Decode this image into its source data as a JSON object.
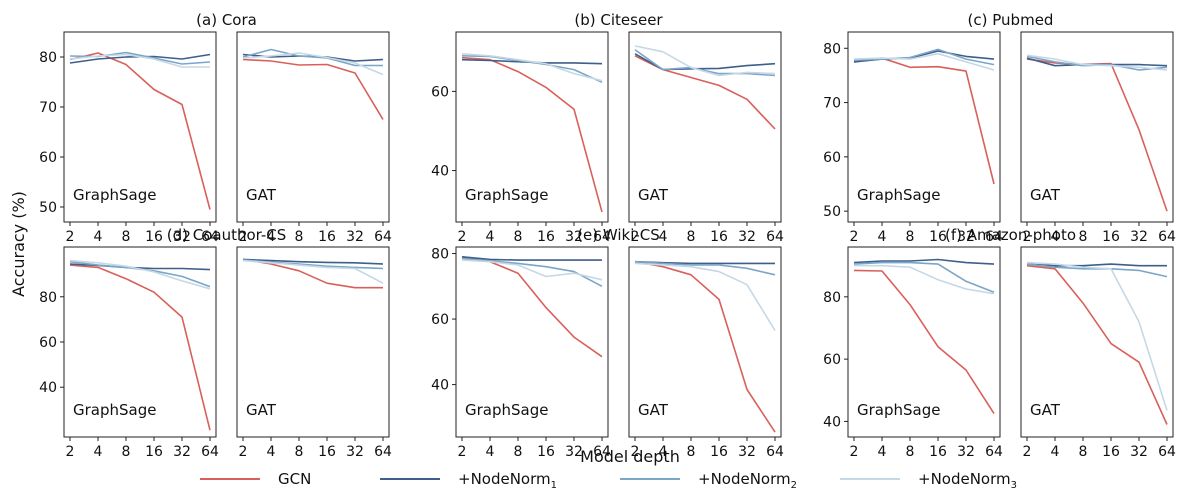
{
  "figure": {
    "ylabel": "Accuracy (%)",
    "xlabel": "Model depth",
    "legend": [
      {
        "name": "GCN",
        "sub": "",
        "color": "#d9605a"
      },
      {
        "name": "+NodeNorm",
        "sub": "1",
        "color": "#3d5f8a"
      },
      {
        "name": "+NodeNorm",
        "sub": "2",
        "color": "#7aa6c8"
      },
      {
        "name": "+NodeNorm",
        "sub": "3",
        "color": "#c5d8e6"
      }
    ]
  },
  "chart_data": [
    {
      "type": "line",
      "title": "(a) Cora",
      "panel": "GraphSage",
      "x": [
        2,
        4,
        8,
        16,
        32,
        64
      ],
      "ylim": [
        47,
        85
      ],
      "yticks": [
        50,
        60,
        70,
        80
      ],
      "series": [
        {
          "values": [
            79.5,
            80.8,
            78.5,
            73.5,
            70.5,
            49.5
          ]
        },
        {
          "values": [
            78.8,
            79.6,
            80.0,
            80.1,
            79.6,
            80.5
          ]
        },
        {
          "values": [
            80.2,
            80.1,
            80.9,
            79.8,
            78.6,
            79.0
          ]
        },
        {
          "values": [
            79.6,
            80.2,
            80.5,
            79.6,
            78.0,
            78.0
          ]
        }
      ]
    },
    {
      "type": "line",
      "panel": "GAT",
      "x": [
        2,
        4,
        8,
        16,
        32,
        64
      ],
      "ylim": [
        47,
        85
      ],
      "series": [
        {
          "values": [
            79.5,
            79.2,
            78.4,
            78.5,
            76.8,
            67.5
          ]
        },
        {
          "values": [
            80.5,
            80.0,
            80.2,
            80.0,
            79.2,
            79.5
          ]
        },
        {
          "values": [
            80.0,
            81.5,
            80.2,
            79.8,
            78.3,
            78.3
          ]
        },
        {
          "values": [
            79.8,
            80.2,
            80.8,
            79.9,
            78.8,
            76.5
          ]
        }
      ]
    },
    {
      "type": "line",
      "title": "(b) Citeseer",
      "panel": "GraphSage",
      "x": [
        2,
        4,
        8,
        16,
        32,
        64
      ],
      "ylim": [
        27,
        75
      ],
      "yticks": [
        40,
        60
      ],
      "series": [
        {
          "values": [
            68.5,
            68.0,
            65.0,
            61.0,
            55.5,
            29.5
          ]
        },
        {
          "values": [
            68.0,
            67.8,
            67.5,
            67.2,
            67.2,
            67.0
          ]
        },
        {
          "values": [
            69.0,
            68.8,
            67.8,
            66.8,
            65.5,
            62.3
          ]
        },
        {
          "values": [
            69.5,
            69.0,
            68.0,
            67.0,
            64.5,
            62.7
          ]
        }
      ]
    },
    {
      "type": "line",
      "panel": "GAT",
      "x": [
        2,
        4,
        8,
        16,
        32,
        64
      ],
      "ylim": [
        27,
        75
      ],
      "series": [
        {
          "values": [
            69.0,
            65.5,
            63.5,
            61.5,
            58.0,
            50.5
          ]
        },
        {
          "values": [
            69.5,
            65.5,
            65.7,
            65.8,
            66.5,
            67.0
          ]
        },
        {
          "values": [
            70.5,
            65.5,
            66.0,
            64.5,
            64.5,
            64.0
          ]
        },
        {
          "values": [
            71.5,
            70.0,
            66.0,
            64.0,
            64.8,
            64.5
          ]
        }
      ]
    },
    {
      "type": "line",
      "title": "(c) Pubmed",
      "panel": "GraphSage",
      "x": [
        2,
        4,
        8,
        16,
        32,
        64
      ],
      "ylim": [
        48,
        83
      ],
      "yticks": [
        50,
        60,
        70,
        80
      ],
      "series": [
        {
          "values": [
            77.5,
            78.2,
            76.5,
            76.6,
            75.8,
            55.0
          ]
        },
        {
          "values": [
            77.5,
            78.0,
            78.2,
            79.5,
            78.5,
            78.0
          ]
        },
        {
          "values": [
            77.8,
            78.0,
            78.3,
            79.8,
            78.0,
            77.0
          ]
        },
        {
          "values": [
            78.0,
            78.2,
            78.0,
            79.0,
            77.5,
            76.0
          ]
        }
      ]
    },
    {
      "type": "line",
      "panel": "GAT",
      "x": [
        2,
        4,
        8,
        16,
        32,
        64
      ],
      "ylim": [
        48,
        83
      ],
      "series": [
        {
          "values": [
            78.0,
            77.3,
            77.0,
            77.2,
            65.0,
            50.0
          ]
        },
        {
          "values": [
            78.2,
            76.8,
            77.0,
            77.0,
            77.0,
            76.8
          ]
        },
        {
          "values": [
            78.5,
            77.5,
            76.8,
            77.0,
            76.0,
            76.5
          ]
        },
        {
          "values": [
            78.7,
            78.0,
            77.0,
            76.8,
            76.5,
            76.0
          ]
        }
      ]
    },
    {
      "type": "line",
      "title": "(d) Coauthor-CS",
      "panel": "GraphSage",
      "x": [
        2,
        4,
        8,
        16,
        32,
        64
      ],
      "ylim": [
        18,
        102
      ],
      "yticks": [
        40,
        60,
        80
      ],
      "series": [
        {
          "values": [
            94.0,
            93.0,
            88.0,
            82.0,
            71.0,
            21.0
          ]
        },
        {
          "values": [
            94.5,
            93.8,
            93.0,
            92.5,
            92.5,
            92.0
          ]
        },
        {
          "values": [
            95.5,
            94.0,
            93.0,
            91.5,
            89.0,
            84.5
          ]
        },
        {
          "values": [
            96.0,
            95.0,
            93.5,
            91.0,
            87.0,
            83.5
          ]
        }
      ]
    },
    {
      "type": "line",
      "panel": "GAT",
      "x": [
        2,
        4,
        8,
        16,
        32,
        64
      ],
      "ylim": [
        18,
        102
      ],
      "series": [
        {
          "values": [
            96.5,
            94.5,
            91.5,
            86.0,
            84.0,
            84.0
          ]
        },
        {
          "values": [
            96.5,
            96.0,
            95.5,
            95.2,
            95.0,
            94.5
          ]
        },
        {
          "values": [
            96.3,
            95.3,
            94.5,
            93.5,
            93.0,
            92.5
          ]
        },
        {
          "values": [
            96.0,
            95.0,
            94.0,
            93.0,
            92.5,
            86.0
          ]
        }
      ]
    },
    {
      "type": "line",
      "title": "(e) Wiki-CS",
      "panel": "GraphSage",
      "x": [
        2,
        4,
        8,
        16,
        32,
        64
      ],
      "ylim": [
        24,
        82
      ],
      "yticks": [
        40,
        60,
        80
      ],
      "series": [
        {
          "values": [
            79.0,
            77.5,
            74.0,
            63.5,
            54.5,
            48.5
          ]
        },
        {
          "values": [
            79.0,
            78.2,
            78.0,
            78.0,
            78.0,
            78.0
          ]
        },
        {
          "values": [
            78.5,
            77.8,
            77.0,
            76.0,
            74.5,
            70.0
          ]
        },
        {
          "values": [
            78.0,
            77.5,
            76.5,
            73.0,
            74.0,
            72.0
          ]
        }
      ]
    },
    {
      "type": "line",
      "panel": "GAT",
      "x": [
        2,
        4,
        8,
        16,
        32,
        64
      ],
      "ylim": [
        24,
        82
      ],
      "series": [
        {
          "values": [
            77.5,
            76.0,
            73.5,
            66.0,
            38.5,
            25.5
          ]
        },
        {
          "values": [
            77.5,
            77.2,
            77.0,
            77.0,
            77.0,
            77.0
          ]
        },
        {
          "values": [
            77.5,
            77.0,
            76.5,
            76.5,
            75.5,
            73.5
          ]
        },
        {
          "values": [
            77.0,
            76.5,
            76.0,
            74.5,
            70.5,
            56.5
          ]
        }
      ]
    },
    {
      "type": "line",
      "title": "(f) Amazon-photo",
      "panel": "GraphSage",
      "x": [
        2,
        4,
        8,
        16,
        32,
        64
      ],
      "ylim": [
        35,
        96
      ],
      "yticks": [
        40,
        60,
        80
      ],
      "series": [
        {
          "values": [
            88.5,
            88.3,
            77.5,
            64.0,
            56.5,
            42.5
          ]
        },
        {
          "values": [
            91.0,
            91.5,
            91.5,
            92.0,
            91.0,
            90.5
          ]
        },
        {
          "values": [
            90.5,
            91.0,
            91.0,
            90.5,
            85.0,
            81.5
          ]
        },
        {
          "values": [
            90.0,
            90.0,
            89.5,
            85.5,
            82.5,
            81.0
          ]
        }
      ]
    },
    {
      "type": "line",
      "panel": "GAT",
      "x": [
        2,
        4,
        8,
        16,
        32,
        64
      ],
      "ylim": [
        35,
        96
      ],
      "series": [
        {
          "values": [
            90.0,
            89.0,
            78.0,
            65.0,
            59.0,
            39.0
          ]
        },
        {
          "values": [
            90.5,
            90.0,
            90.0,
            90.5,
            90.0,
            90.0
          ]
        },
        {
          "values": [
            90.5,
            89.5,
            89.0,
            89.0,
            88.5,
            86.5
          ]
        },
        {
          "values": [
            91.0,
            90.5,
            89.5,
            89.0,
            72.0,
            43.5
          ]
        }
      ]
    }
  ]
}
